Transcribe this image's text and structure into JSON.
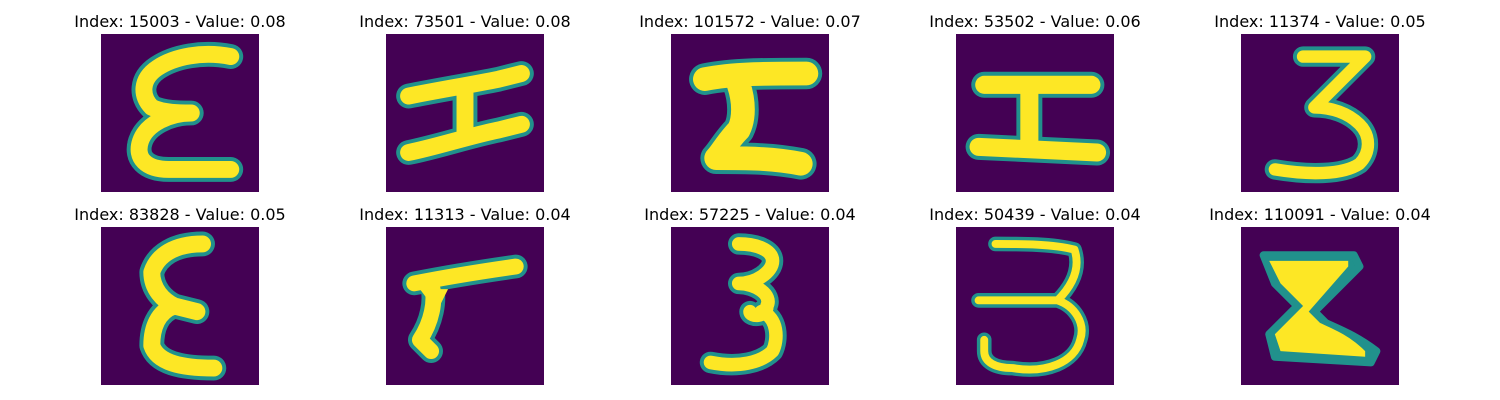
{
  "colors": {
    "background": "#440154",
    "stroke_outer": "#21918c",
    "stroke_inner": "#fde725",
    "stroke_mid": "#5ec962"
  },
  "panels": [
    {
      "title": "Index: 15003 - Value: 0.08",
      "glyph": "epsilon"
    },
    {
      "title": "Index: 73501 - Value: 0.08",
      "glyph": "slanted-h"
    },
    {
      "title": "Index: 101572 - Value: 0.07",
      "glyph": "thick-z"
    },
    {
      "title": "Index: 53502 - Value: 0.06",
      "glyph": "i-beam"
    },
    {
      "title": "Index: 11374 - Value: 0.05",
      "glyph": "three"
    },
    {
      "title": "Index: 83828 - Value: 0.05",
      "glyph": "epsilon-tall"
    },
    {
      "title": "Index: 11313 - Value: 0.04",
      "glyph": "seven-like"
    },
    {
      "title": "Index: 57225 - Value: 0.04",
      "glyph": "three-curly"
    },
    {
      "title": "Index: 50439 - Value: 0.04",
      "glyph": "three-wide"
    },
    {
      "title": "Index: 110091 - Value: 0.04",
      "glyph": "block-z"
    }
  ]
}
